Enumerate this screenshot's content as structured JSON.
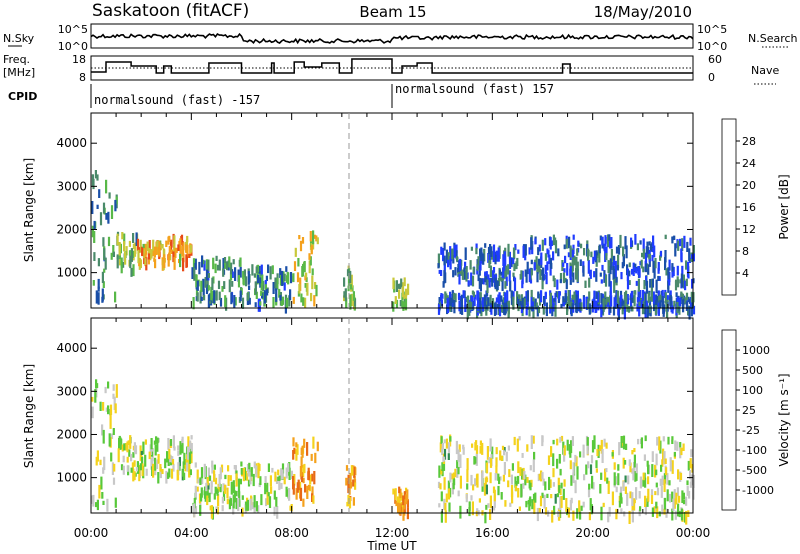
{
  "header": {
    "site": "Saskatoon (fitACF)",
    "beam": "Beam 15",
    "date": "18/May/2010"
  },
  "noise_panel": {
    "left_label": "N.Sky",
    "left_ticks": [
      "10^5",
      "10^0"
    ],
    "right_label": "N.Search",
    "right_ticks": [
      "10^5",
      "10^0"
    ]
  },
  "freq_panel": {
    "left_label_1": "Freq.",
    "left_label_2": "[MHz]",
    "left_ticks": [
      "18",
      "8"
    ],
    "right_label": "Nave",
    "right_ticks": [
      "60",
      "0"
    ]
  },
  "cpid": {
    "label": "CPID",
    "segments": [
      {
        "start": "00:00",
        "text": "normalsound (fast) -157"
      },
      {
        "start": "12:00",
        "text": "normalsound (fast) 157"
      }
    ]
  },
  "chart_data": [
    {
      "type": "heatmap",
      "name": "power",
      "ylabel": "Slant Range [km]",
      "ytick_labels": [
        "1000",
        "2000",
        "3000",
        "4000"
      ],
      "ylim": [
        180,
        4700
      ],
      "xlim_hours": [
        0,
        24
      ],
      "colorbar": {
        "label": "Power [dB]",
        "ticks": [
          "4",
          "8",
          "12",
          "16",
          "20",
          "24",
          "28"
        ],
        "colors": [
          "#1f3cff",
          "#1a4fa8",
          "#4a8a6a",
          "#58b848",
          "#c8c83a",
          "#f4a11c",
          "#e84a16",
          "#e81616"
        ]
      },
      "echo_regions": [
        {
          "t0": 0.0,
          "t1": 1.0,
          "r0": 400,
          "r1": 3400,
          "level": 2
        },
        {
          "t0": 1.0,
          "t1": 1.8,
          "r0": 1100,
          "r1": 2000,
          "level": 3
        },
        {
          "t0": 1.8,
          "t1": 3.0,
          "r0": 1300,
          "r1": 1800,
          "level": 5
        },
        {
          "t0": 3.0,
          "t1": 4.0,
          "r0": 1300,
          "r1": 1900,
          "level": 5
        },
        {
          "t0": 4.0,
          "t1": 6.0,
          "r0": 400,
          "r1": 1400,
          "level": 2
        },
        {
          "t0": 6.0,
          "t1": 8.0,
          "r0": 300,
          "r1": 1200,
          "level": 2
        },
        {
          "t0": 8.0,
          "t1": 9.0,
          "r0": 400,
          "r1": 2000,
          "level": 4
        },
        {
          "t0": 10.0,
          "t1": 10.5,
          "r0": 400,
          "r1": 1300,
          "level": 3
        },
        {
          "t0": 12.0,
          "t1": 12.6,
          "r0": 300,
          "r1": 900,
          "level": 3
        },
        {
          "t0": 13.8,
          "t1": 24.0,
          "r0": 200,
          "r1": 600,
          "level": 1
        },
        {
          "t0": 13.8,
          "t1": 17.5,
          "r0": 800,
          "r1": 1700,
          "level": 1
        },
        {
          "t0": 17.5,
          "t1": 24.0,
          "r0": 800,
          "r1": 1900,
          "level": 1
        }
      ]
    },
    {
      "type": "heatmap",
      "name": "velocity",
      "ylabel": "Slant Range [km]",
      "ytick_labels": [
        "1000",
        "2000",
        "3000",
        "4000"
      ],
      "ylim": [
        180,
        4700
      ],
      "xlim_hours": [
        0,
        24
      ],
      "colorbar": {
        "label": "Velocity [m s⁻¹]",
        "ticks": [
          "1000",
          "500",
          "100",
          "25",
          "-25",
          "-100",
          "-500",
          "-1000"
        ],
        "colors": [
          "#1f3cff",
          "#1a5aa8",
          "#2e8a50",
          "#58c83a",
          "#c8c8c8",
          "#f4d21c",
          "#f4a11c",
          "#e86a16",
          "#e81616"
        ]
      },
      "echo_regions": [
        {
          "t0": 0.0,
          "t1": 1.0,
          "r0": 400,
          "r1": 3400,
          "level": 4
        },
        {
          "t0": 1.0,
          "t1": 4.0,
          "r0": 1100,
          "r1": 2000,
          "level": 4
        },
        {
          "t0": 4.0,
          "t1": 8.0,
          "r0": 300,
          "r1": 1400,
          "level": 4
        },
        {
          "t0": 8.0,
          "t1": 9.0,
          "r0": 500,
          "r1": 2000,
          "level": 6
        },
        {
          "t0": 10.0,
          "t1": 10.5,
          "r0": 400,
          "r1": 1300,
          "level": 6
        },
        {
          "t0": 12.0,
          "t1": 12.6,
          "r0": 300,
          "r1": 900,
          "level": 6
        },
        {
          "t0": 13.8,
          "t1": 24.0,
          "r0": 200,
          "r1": 2000,
          "level": 4
        }
      ]
    }
  ],
  "x_axis": {
    "label": "Time UT",
    "ticks": [
      "00:00",
      "04:00",
      "08:00",
      "12:00",
      "16:00",
      "20:00",
      "00:00"
    ]
  }
}
